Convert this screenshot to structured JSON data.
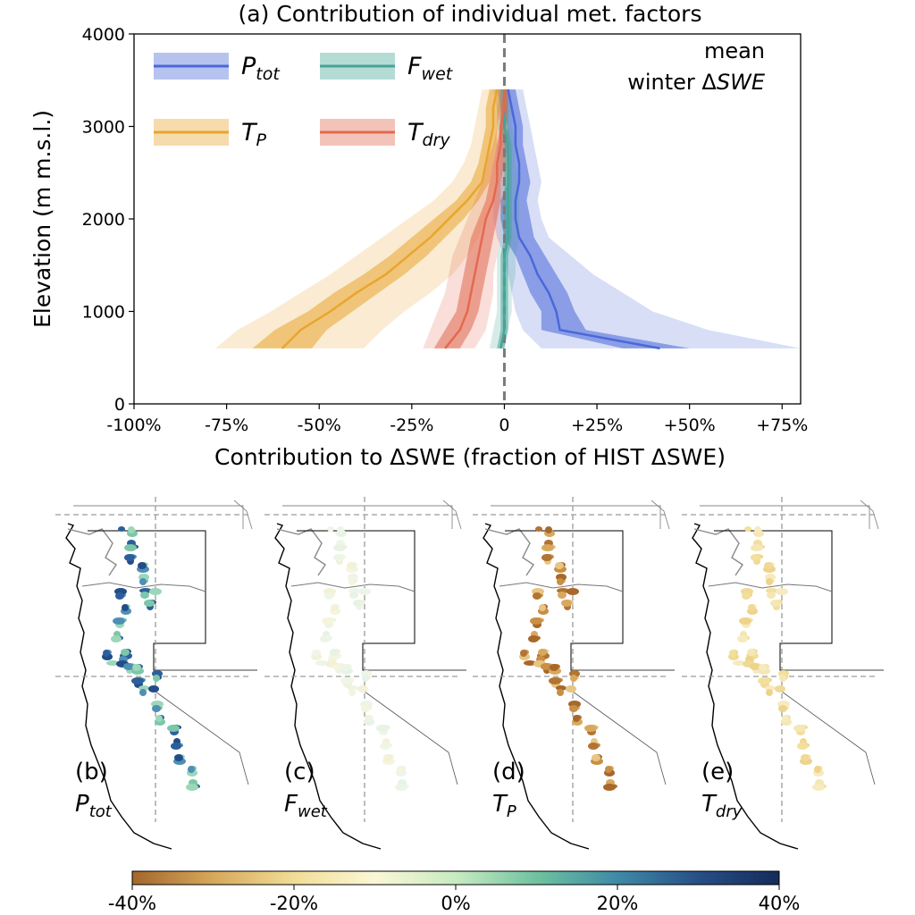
{
  "chart_data": {
    "type": "line",
    "title": "(a) Contribution of individual met. factors",
    "xlabel": "Contribution to ΔSWE (fraction of HIST ΔSWE)",
    "ylabel": "Elevation (m m.s.l.)",
    "xlim": [
      -1.0,
      0.8
    ],
    "ylim": [
      0,
      4000
    ],
    "xticks": [
      -1.0,
      -0.75,
      -0.5,
      -0.25,
      0,
      0.25,
      0.5,
      0.75
    ],
    "xtick_labels": [
      "-100%",
      "-75%",
      "-50%",
      "-25%",
      "0",
      "+25%",
      "+50%",
      "+75%"
    ],
    "yticks": [
      0,
      1000,
      2000,
      3000,
      4000
    ],
    "ytick_labels": [
      "0",
      "1000",
      "2000",
      "3000",
      "4000"
    ],
    "annotation": {
      "line1": "mean",
      "line2_prefix": "winter Δ",
      "line2_var": "SWE"
    },
    "zero_line": true,
    "legend": "top-left",
    "elevation": [
      600,
      800,
      1000,
      1200,
      1400,
      1600,
      1800,
      2000,
      2200,
      2400,
      2600,
      2800,
      3000,
      3200,
      3400
    ],
    "series": [
      {
        "key": "ptot",
        "name": "P",
        "sub": "tot",
        "color": "#4a68d8",
        "median": [
          0.42,
          0.15,
          0.14,
          0.12,
          0.09,
          0.07,
          0.04,
          0.03,
          0.03,
          0.04,
          0.04,
          0.03,
          0.03,
          0.02,
          0.01
        ],
        "inner_low": [
          0.32,
          0.1,
          0.1,
          0.07,
          0.05,
          0.03,
          0.0,
          -0.01,
          -0.01,
          0.01,
          0.01,
          0.0,
          0.01,
          -0.01,
          -0.02
        ],
        "inner_high": [
          0.5,
          0.22,
          0.19,
          0.17,
          0.14,
          0.11,
          0.08,
          0.07,
          0.06,
          0.07,
          0.06,
          0.05,
          0.05,
          0.04,
          0.03
        ],
        "outer_low": [
          0.1,
          0.05,
          0.03,
          0.02,
          0.01,
          0.0,
          -0.02,
          -0.03,
          -0.03,
          -0.02,
          -0.02,
          -0.02,
          -0.01,
          -0.02,
          -0.03
        ],
        "outer_high": [
          0.8,
          0.55,
          0.4,
          0.32,
          0.24,
          0.18,
          0.12,
          0.1,
          0.09,
          0.1,
          0.09,
          0.08,
          0.07,
          0.06,
          0.05
        ]
      },
      {
        "key": "fwet",
        "name": "F",
        "sub": "wet",
        "color": "#46a596",
        "median": [
          -0.01,
          0.0,
          0.0,
          0.0,
          0.0,
          0.0,
          0.01,
          0.01,
          0.01,
          0.01,
          0.01,
          0.01,
          0.0,
          0.0,
          0.0
        ],
        "inner_low": [
          -0.02,
          -0.01,
          -0.01,
          -0.01,
          -0.01,
          -0.01,
          0.0,
          0.0,
          0.0,
          0.0,
          0.0,
          0.0,
          -0.01,
          -0.01,
          -0.01
        ],
        "inner_high": [
          0.0,
          0.01,
          0.01,
          0.01,
          0.01,
          0.01,
          0.02,
          0.02,
          0.02,
          0.02,
          0.02,
          0.02,
          0.01,
          0.01,
          0.01
        ],
        "outer_low": [
          -0.04,
          -0.03,
          -0.02,
          -0.02,
          -0.02,
          -0.02,
          -0.01,
          -0.01,
          -0.01,
          -0.01,
          -0.01,
          -0.01,
          -0.02,
          -0.02,
          -0.01
        ],
        "outer_high": [
          0.0,
          0.01,
          0.02,
          0.02,
          0.03,
          0.03,
          0.04,
          0.04,
          0.04,
          0.04,
          0.03,
          0.03,
          0.02,
          0.02,
          0.01
        ]
      },
      {
        "key": "tp",
        "name": "T",
        "sub": "P",
        "color": "#e8a530",
        "median": [
          -0.6,
          -0.55,
          -0.47,
          -0.4,
          -0.32,
          -0.26,
          -0.2,
          -0.15,
          -0.1,
          -0.06,
          -0.05,
          -0.04,
          -0.03,
          -0.03,
          -0.02
        ],
        "inner_low": [
          -0.68,
          -0.62,
          -0.53,
          -0.46,
          -0.38,
          -0.31,
          -0.25,
          -0.19,
          -0.13,
          -0.09,
          -0.07,
          -0.06,
          -0.05,
          -0.05,
          -0.04
        ],
        "inner_high": [
          -0.52,
          -0.48,
          -0.41,
          -0.34,
          -0.27,
          -0.21,
          -0.16,
          -0.11,
          -0.07,
          -0.04,
          -0.03,
          -0.02,
          -0.02,
          -0.01,
          -0.01
        ],
        "outer_low": [
          -0.78,
          -0.72,
          -0.63,
          -0.55,
          -0.47,
          -0.4,
          -0.33,
          -0.26,
          -0.19,
          -0.14,
          -0.11,
          -0.09,
          -0.08,
          -0.07,
          -0.06
        ],
        "outer_high": [
          -0.38,
          -0.33,
          -0.27,
          -0.2,
          -0.14,
          -0.1,
          -0.07,
          -0.05,
          -0.03,
          -0.02,
          -0.01,
          -0.01,
          -0.01,
          0.0,
          0.0
        ]
      },
      {
        "key": "tdry",
        "name": "T",
        "sub": "dry",
        "color": "#e26a50",
        "median": [
          -0.16,
          -0.12,
          -0.1,
          -0.09,
          -0.08,
          -0.07,
          -0.06,
          -0.05,
          -0.03,
          -0.02,
          -0.02,
          -0.01,
          -0.01,
          0.0,
          0.0
        ],
        "inner_low": [
          -0.19,
          -0.16,
          -0.13,
          -0.12,
          -0.11,
          -0.1,
          -0.09,
          -0.07,
          -0.05,
          -0.04,
          -0.03,
          -0.02,
          -0.01,
          -0.01,
          0.0
        ],
        "inner_high": [
          -0.12,
          -0.09,
          -0.07,
          -0.06,
          -0.05,
          -0.04,
          -0.03,
          -0.02,
          -0.01,
          -0.01,
          0.0,
          0.0,
          0.0,
          0.01,
          0.01
        ],
        "outer_low": [
          -0.22,
          -0.2,
          -0.18,
          -0.16,
          -0.15,
          -0.14,
          -0.12,
          -0.1,
          -0.08,
          -0.06,
          -0.05,
          -0.03,
          -0.02,
          -0.02,
          -0.01
        ],
        "outer_high": [
          -0.08,
          -0.05,
          -0.04,
          -0.03,
          -0.03,
          -0.02,
          -0.01,
          -0.01,
          0.0,
          0.0,
          0.01,
          0.01,
          0.01,
          0.01,
          0.01
        ]
      }
    ],
    "maps": [
      {
        "label": "(b)",
        "var": "P",
        "sub": "tot"
      },
      {
        "label": "(c)",
        "var": "F",
        "sub": "wet"
      },
      {
        "label": "(d)",
        "var": "T",
        "sub": "P"
      },
      {
        "label": "(e)",
        "var": "T",
        "sub": "dry"
      }
    ],
    "colorbar": {
      "ticks": [
        "-40%",
        "-20%",
        "0%",
        "20%",
        "40%"
      ],
      "colors": [
        "#a4662c",
        "#d6a85a",
        "#f1dd96",
        "#fbf7d6",
        "#c8ebc2",
        "#6fc2a0",
        "#3f8aa6",
        "#274f86",
        "#142c5a"
      ]
    }
  }
}
